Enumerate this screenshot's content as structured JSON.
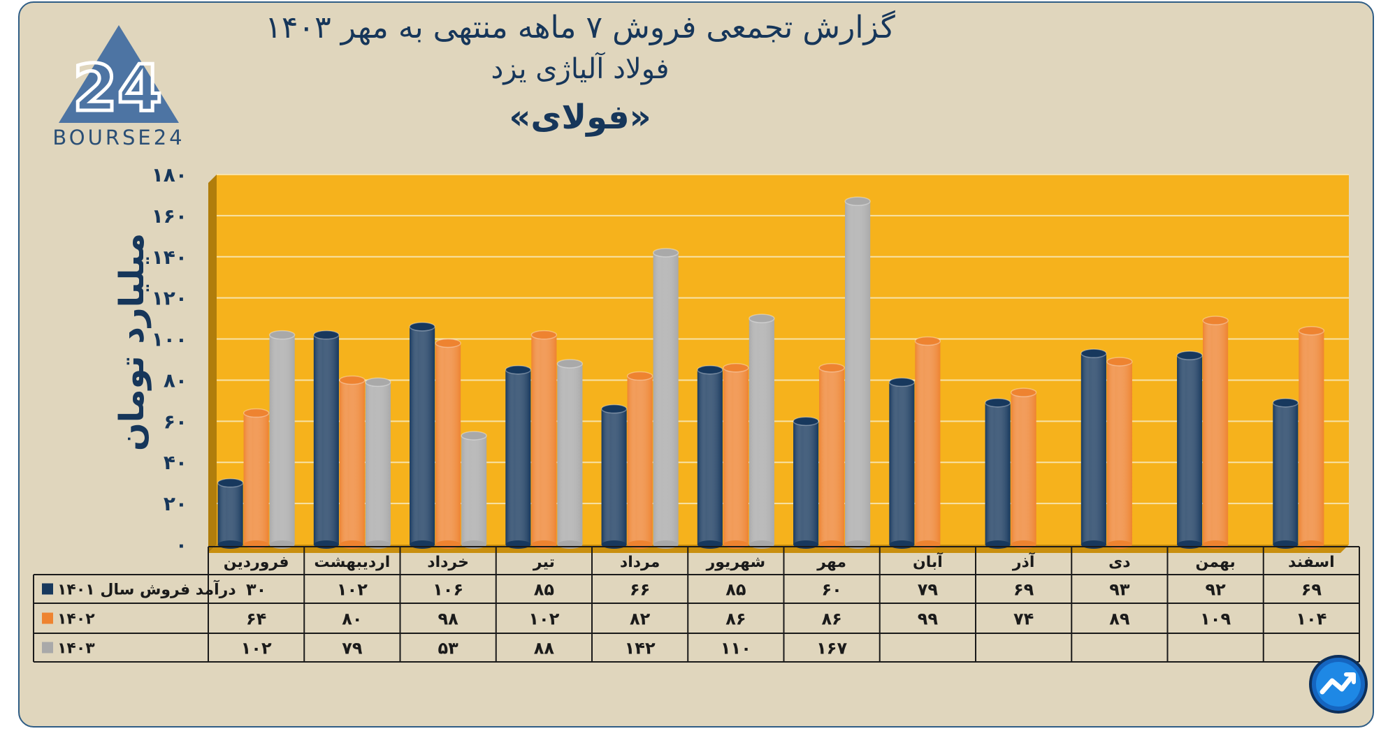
{
  "title": {
    "line1": "گزارش تجمعی فروش ۷ ماهه منتهی به مهر ۱۴۰۳",
    "line2": "فولاد آلیاژی یزد",
    "line3": "«فولای»"
  },
  "logo": {
    "text": "BOURSE24",
    "mark": "24"
  },
  "colors": {
    "background": "#e0d6bd",
    "plot_area": "#f6b21c",
    "series_1401": "#17385d",
    "series_1402": "#ee8330",
    "series_1403": "#a9a9a9",
    "title_text": "#16365a"
  },
  "chart_data": {
    "type": "bar",
    "ylabel": "میلیارد تومان",
    "ylim": [
      0,
      180
    ],
    "yticks": [
      "۰",
      "۲۰",
      "۴۰",
      "۶۰",
      "۸۰",
      "۱۰۰",
      "۱۲۰",
      "۱۴۰",
      "۱۶۰",
      "۱۸۰"
    ],
    "grid": true,
    "legend": "table-left",
    "categories": [
      "فروردین",
      "اردیبهشت",
      "خرداد",
      "تیر",
      "مرداد",
      "شهریور",
      "مهر",
      "آبان",
      "آذر",
      "دی",
      "بهمن",
      "اسفند"
    ],
    "series": [
      {
        "name": "درآمد فروش سال ۱۴۰۱",
        "color": "#17385d",
        "values": [
          30,
          102,
          106,
          85,
          66,
          85,
          60,
          79,
          69,
          93,
          92,
          69
        ],
        "labels": [
          "۳۰",
          "۱۰۲",
          "۱۰۶",
          "۸۵",
          "۶۶",
          "۸۵",
          "۶۰",
          "۷۹",
          "۶۹",
          "۹۳",
          "۹۲",
          "۶۹"
        ]
      },
      {
        "name": "۱۴۰۲",
        "color": "#ee8330",
        "values": [
          64,
          80,
          98,
          102,
          82,
          86,
          86,
          99,
          74,
          89,
          109,
          104
        ],
        "labels": [
          "۶۴",
          "۸۰",
          "۹۸",
          "۱۰۲",
          "۸۲",
          "۸۶",
          "۸۶",
          "۹۹",
          "۷۴",
          "۸۹",
          "۱۰۹",
          "۱۰۴"
        ]
      },
      {
        "name": "۱۴۰۳",
        "color": "#a9a9a9",
        "values": [
          102,
          79,
          53,
          88,
          142,
          110,
          167,
          null,
          null,
          null,
          null,
          null
        ],
        "labels": [
          "۱۰۲",
          "۷۹",
          "۵۳",
          "۸۸",
          "۱۴۲",
          "۱۱۰",
          "۱۶۷",
          "",
          "",
          "",
          "",
          ""
        ]
      }
    ]
  }
}
